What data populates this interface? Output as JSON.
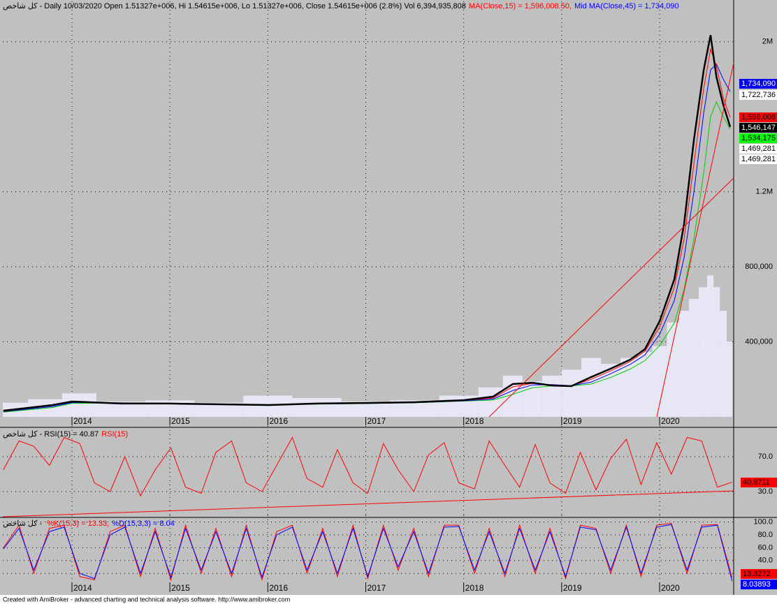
{
  "chart_data": [
    {
      "type": "line",
      "title": "كل شاخص - Daily 10/03/2020 Open 1.51327e+006, Hi 1.54615e+006, Lo 1.51327e+006, Close 1.54615e+006 (2.8%) Vol 6,394,935,808",
      "annotations": [
        {
          "text": "MA(Close,15) = 1,596,008.50,",
          "color": "#ff0000"
        },
        {
          "text": "Mid MA(Close,45) = 1,734,090",
          "color": "#0000ff"
        }
      ],
      "xlim": [
        2013.294,
        2020.756
      ],
      "xticks": [
        2014,
        2015,
        2016,
        2017,
        2018,
        2019,
        2020
      ],
      "ylim": [
        0,
        2200000
      ],
      "yticks": [
        {
          "value": 400000,
          "label": "400,000"
        },
        {
          "value": 800000,
          "label": "800,000"
        },
        {
          "value": 1200000,
          "label": "1.2M"
        },
        {
          "value": 2000000,
          "label": "2M"
        }
      ],
      "y2lim": [
        0,
        35000000000
      ],
      "grid": true,
      "x": [
        2013.3,
        2013.8,
        2014.0,
        2014.5,
        2015.0,
        2015.5,
        2016.0,
        2016.5,
        2017.0,
        2017.5,
        2018.0,
        2018.3,
        2018.5,
        2018.7,
        2018.9,
        2019.1,
        2019.3,
        2019.5,
        2019.7,
        2019.85,
        2020.0,
        2020.15,
        2020.25,
        2020.35,
        2020.45,
        2020.52,
        2020.58,
        2020.65,
        2020.72
      ],
      "series": [
        {
          "name": "Vol",
          "color": "#e6e6f5",
          "axis": "y2",
          "values": [
            1200000000,
            1500000000,
            2000000000,
            1300000000,
            1400000000,
            1200000000,
            1800000000,
            1600000000,
            1300000000,
            1400000000,
            1800000000,
            2500000000,
            3500000000,
            3000000000,
            3500000000,
            4000000000,
            5000000000,
            4500000000,
            5000000000,
            5500000000,
            6000000000,
            8000000000,
            9000000000,
            10000000000,
            11000000000,
            12000000000,
            11000000000,
            9000000000,
            6394935808
          ]
        },
        {
          "color": "#00cc00",
          "values": [
            25000,
            50000,
            72000,
            74000,
            72000,
            69000,
            66000,
            68000,
            71000,
            75000,
            84000,
            90000,
            120000,
            155000,
            165000,
            165000,
            175000,
            210000,
            255000,
            300000,
            380000,
            500000,
            680000,
            950000,
            1300000,
            1600000,
            1680000,
            1600000,
            1534175
          ]
        },
        {
          "name": "Mid MA(Close,45)",
          "color": "#0000ff",
          "values": [
            28000,
            55000,
            76000,
            75000,
            72000,
            69000,
            65000,
            69000,
            72000,
            76000,
            85000,
            95000,
            140000,
            170000,
            172000,
            166000,
            185000,
            230000,
            280000,
            330000,
            440000,
            620000,
            850000,
            1200000,
            1620000,
            1850000,
            1880000,
            1800000,
            1734090
          ]
        },
        {
          "name": "MA(Close,15)",
          "color": "#ff0000",
          "values": [
            30000,
            60000,
            80000,
            73000,
            71000,
            68000,
            64000,
            70000,
            73000,
            77000,
            87000,
            100000,
            160000,
            178000,
            170000,
            165000,
            200000,
            245000,
            295000,
            350000,
            480000,
            690000,
            950000,
            1350000,
            1750000,
            1960000,
            1870000,
            1700000,
            1596008
          ]
        },
        {
          "name": "Close",
          "color": "#000000",
          "values": [
            33000,
            63000,
            82000,
            71000,
            71000,
            67000,
            63000,
            71000,
            74000,
            78000,
            89000,
            108000,
            175000,
            182000,
            167000,
            164000,
            212000,
            257000,
            305000,
            361000,
            510000,
            733000,
            1030000,
            1477000,
            1849000,
            2035000,
            1812000,
            1663000,
            1546147
          ]
        }
      ],
      "value_boxes": [
        {
          "value": 1734090,
          "label": "1,734,090",
          "color": "#0000ff",
          "text_color": "#ffffff"
        },
        {
          "value": 1722736,
          "label": "1,722,736",
          "color": "#ffffff",
          "text_color": "#000000"
        },
        {
          "value": 1596008,
          "label": "1,596,008",
          "color": "#ff0000",
          "text_color": "#000000"
        },
        {
          "value": 1546147,
          "label": "1,546,147",
          "color": "#000000",
          "text_color": "#ffffff"
        },
        {
          "value": 1534175,
          "label": "1,534,175",
          "color": "#00ff00",
          "text_color": "#000000"
        },
        {
          "value": 1469281,
          "label": "1,469,281",
          "color": "#ffffff",
          "text_color": "#000000"
        },
        {
          "value": 1469281,
          "label": "1,469,281",
          "color": "#ffffff",
          "text_color": "#000000"
        }
      ]
    },
    {
      "type": "line",
      "title": "كل شاخص - RSI(15) = 40.87",
      "xlim": [
        2013.294,
        2020.756
      ],
      "xticks": [
        2014,
        2015,
        2016,
        2017,
        2018,
        2019,
        2020
      ],
      "ylim": [
        1.2,
        102
      ],
      "yticks": [
        {
          "value": 30,
          "label": "30.0"
        },
        {
          "value": 70,
          "label": "70.0"
        }
      ],
      "grid": true,
      "x": [
        2013.3,
        2013.46,
        2013.61,
        2013.77,
        2013.92,
        2014.08,
        2014.23,
        2014.39,
        2014.54,
        2014.7,
        2014.85,
        2015.01,
        2015.16,
        2015.32,
        2015.47,
        2015.63,
        2015.78,
        2015.94,
        2016.09,
        2016.25,
        2016.4,
        2016.56,
        2016.71,
        2016.87,
        2017.02,
        2017.18,
        2017.33,
        2017.49,
        2017.64,
        2017.8,
        2017.95,
        2018.11,
        2018.26,
        2018.42,
        2018.57,
        2018.73,
        2018.88,
        2019.04,
        2019.19,
        2019.35,
        2019.5,
        2019.66,
        2019.81,
        2019.97,
        2020.12,
        2020.28,
        2020.43,
        2020.59,
        2020.74
      ],
      "series": [
        {
          "name": "RSI(15)",
          "color": "#ff0000",
          "values": [
            55,
            88,
            82,
            60,
            92,
            85,
            40,
            30,
            70,
            25,
            55,
            80,
            35,
            28,
            75,
            88,
            40,
            30,
            60,
            92,
            45,
            35,
            78,
            40,
            28,
            85,
            55,
            30,
            72,
            86,
            40,
            33,
            88,
            60,
            35,
            84,
            40,
            28,
            75,
            32,
            68,
            90,
            38,
            86,
            50,
            92,
            88,
            35,
            40.87
          ],
          "last_value": 40.8711
        }
      ]
    },
    {
      "type": "line",
      "title": "كل شاخص - ",
      "xlim": [
        2013.294,
        2020.756
      ],
      "xticks": [
        2014,
        2015,
        2016,
        2017,
        2018,
        2019,
        2020
      ],
      "ylim": [
        5,
        106
      ],
      "yticks": [
        {
          "value": 20,
          "label": "20.0"
        },
        {
          "value": 40,
          "label": "40.0"
        },
        {
          "value": 60,
          "label": "60.0"
        },
        {
          "value": 80,
          "label": "80.0"
        },
        {
          "value": 100,
          "label": "100.0"
        }
      ],
      "grid": true,
      "x": [
        2013.3,
        2013.46,
        2013.61,
        2013.77,
        2013.92,
        2014.08,
        2014.23,
        2014.39,
        2014.54,
        2014.7,
        2014.85,
        2015.01,
        2015.16,
        2015.32,
        2015.47,
        2015.63,
        2015.78,
        2015.94,
        2016.09,
        2016.25,
        2016.4,
        2016.56,
        2016.71,
        2016.87,
        2017.02,
        2017.18,
        2017.33,
        2017.49,
        2017.64,
        2017.8,
        2017.95,
        2018.11,
        2018.26,
        2018.42,
        2018.57,
        2018.73,
        2018.88,
        2019.04,
        2019.19,
        2019.35,
        2019.5,
        2019.66,
        2019.81,
        2019.97,
        2020.12,
        2020.28,
        2020.43,
        2020.59,
        2020.74
      ],
      "series": [
        {
          "name": "%K(15,3) = 13.33,",
          "color": "#ff0000",
          "values": [
            60,
            95,
            20,
            90,
            95,
            15,
            10,
            85,
            95,
            15,
            90,
            10,
            95,
            20,
            90,
            15,
            95,
            10,
            85,
            95,
            20,
            90,
            15,
            95,
            12,
            95,
            25,
            90,
            15,
            95,
            95,
            20,
            90,
            15,
            95,
            20,
            90,
            12,
            95,
            90,
            20,
            95,
            15,
            95,
            98,
            20,
            95,
            96,
            13.33
          ],
          "last_value": 13.3272
        },
        {
          "name": "%D(15,3,3) = 8.04",
          "color": "#0000ff",
          "values": [
            58,
            90,
            25,
            85,
            92,
            20,
            12,
            80,
            92,
            20,
            85,
            14,
            90,
            25,
            85,
            20,
            90,
            14,
            80,
            92,
            25,
            85,
            20,
            90,
            15,
            90,
            30,
            85,
            20,
            92,
            93,
            25,
            85,
            20,
            90,
            25,
            85,
            15,
            92,
            88,
            25,
            92,
            20,
            92,
            96,
            25,
            92,
            95,
            8.04
          ],
          "last_value": 8.03893
        }
      ]
    }
  ],
  "footer": "Created with AmiBroker - advanced charting and technical analysis software. http://www.amibroker.com"
}
